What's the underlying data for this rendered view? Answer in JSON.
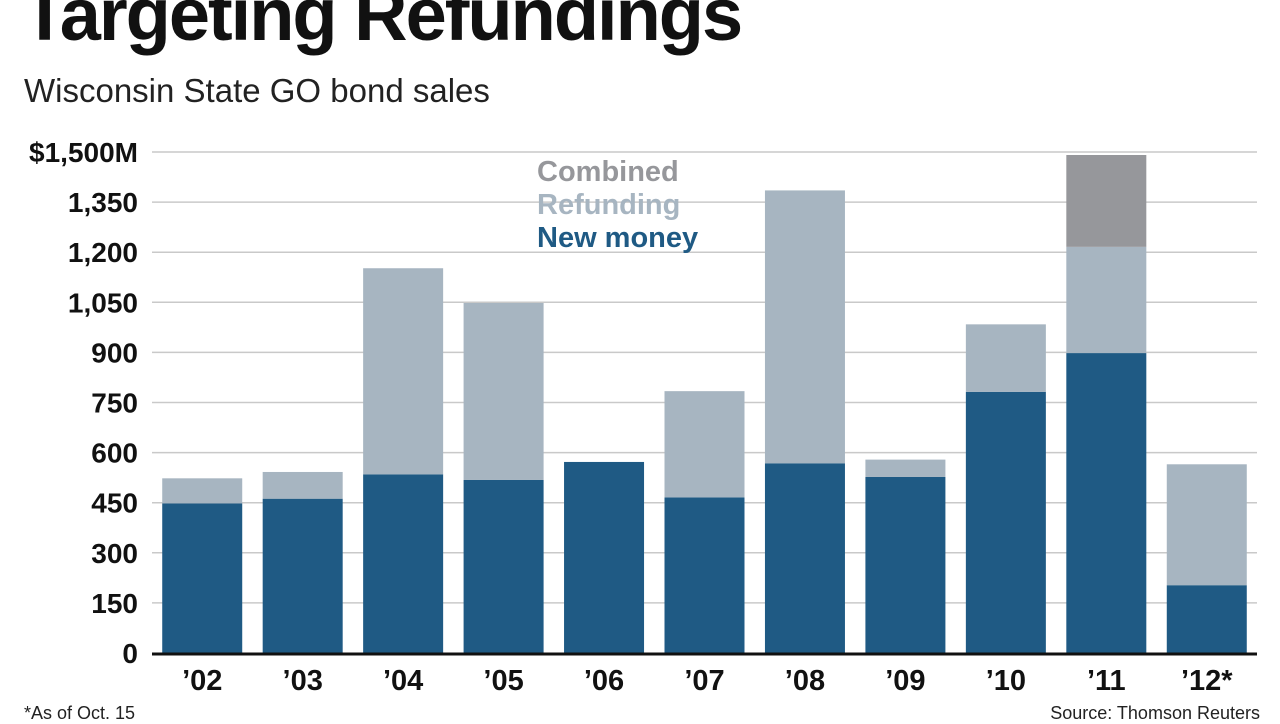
{
  "chart_data": {
    "type": "bar",
    "stacked": true,
    "title": "Targeting Refundings",
    "subtitle": "Wisconsin State GO bond sales",
    "categories": [
      "’02",
      "’03",
      "’04",
      "’05",
      "’06",
      "’07",
      "’08",
      "’09",
      "’10",
      "’11",
      "’12*"
    ],
    "series": [
      {
        "name": "New money",
        "color": "#1f5a84",
        "values": [
          448,
          462,
          535,
          518,
          572,
          466,
          568,
          527,
          782,
          898,
          203
        ]
      },
      {
        "name": "Refunding",
        "color": "#a7b5c1",
        "values": [
          75,
          80,
          617,
          530,
          0,
          318,
          817,
          52,
          202,
          318,
          362
        ]
      },
      {
        "name": "Combined",
        "color": "#96979b",
        "values": [
          0,
          0,
          0,
          0,
          0,
          0,
          0,
          0,
          0,
          275,
          0
        ]
      }
    ],
    "ylim": [
      0,
      1500
    ],
    "yticks": [
      0,
      150,
      300,
      450,
      600,
      750,
      900,
      1050,
      1200,
      1350,
      1500
    ],
    "ytick_labels": [
      "0",
      "150",
      "300",
      "450",
      "600",
      "750",
      "900",
      "1,050",
      "1,200",
      "1,350",
      "$1,500M"
    ],
    "xlabel": "",
    "ylabel": "",
    "grid": true,
    "legend": {
      "position": "top-center",
      "entries": [
        {
          "label": "Combined",
          "color": "#96979b"
        },
        {
          "label": "Refunding",
          "color": "#a7b5c1"
        },
        {
          "label": "New money",
          "color": "#1f5a84"
        }
      ]
    },
    "footnote": "*As of Oct. 15",
    "source": "Source: Thomson Reuters"
  }
}
